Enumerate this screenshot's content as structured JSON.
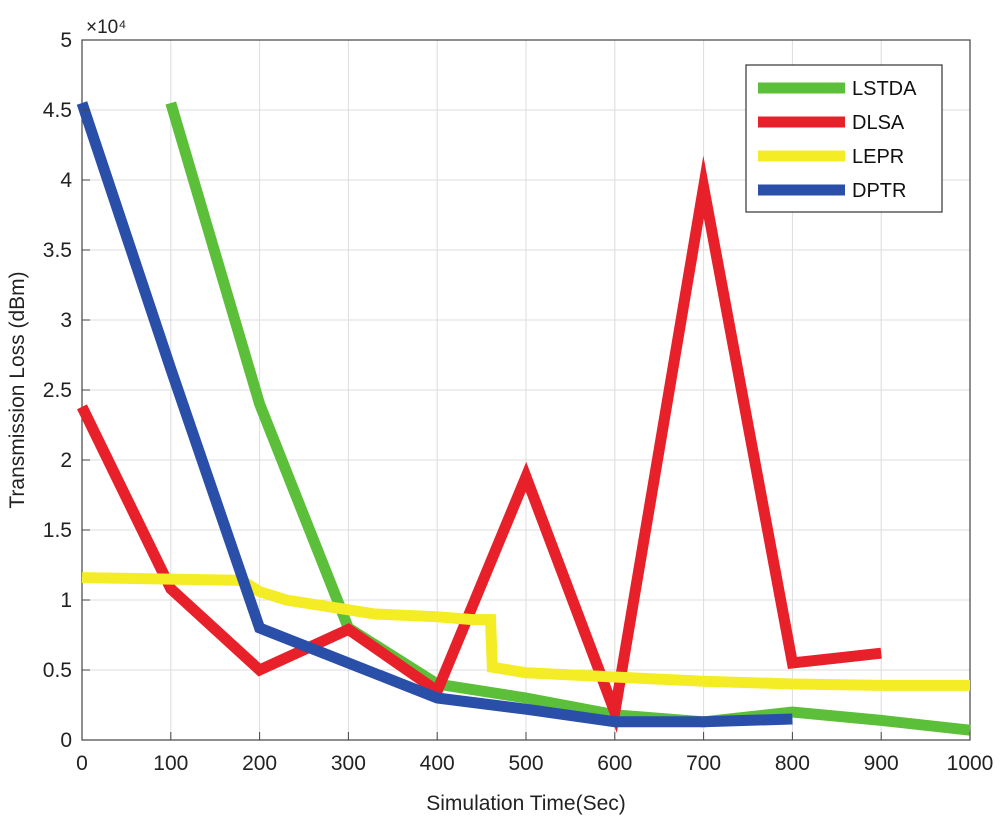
{
  "chart_data": {
    "type": "line",
    "title": "",
    "xlabel": "Simulation Time(Sec)",
    "ylabel": "Transmission Loss (dBm)",
    "y_exponent_label": "×10⁴",
    "xlim": [
      0,
      1000
    ],
    "ylim": [
      0,
      50000
    ],
    "grid": true,
    "legend_position": "top-right",
    "x_ticks": [
      0,
      100,
      200,
      300,
      400,
      500,
      600,
      700,
      800,
      900,
      1000
    ],
    "x_tick_labels": [
      "0",
      "100",
      "200",
      "300",
      "400",
      "500",
      "600",
      "700",
      "800",
      "900",
      "1000"
    ],
    "y_ticks": [
      0,
      5000,
      10000,
      15000,
      20000,
      25000,
      30000,
      35000,
      40000,
      45000,
      50000
    ],
    "y_tick_labels": [
      "0",
      "0.5",
      "1",
      "1.5",
      "2",
      "2.5",
      "3",
      "3.5",
      "4",
      "4.5",
      "5"
    ],
    "series": [
      {
        "name": "LSTDA",
        "color": "#5cbf3a",
        "x": [
          100,
          200,
          300,
          400,
          500,
          600,
          700,
          800,
          900,
          1000
        ],
        "y": [
          45500,
          24000,
          8000,
          4000,
          3000,
          1800,
          1300,
          2000,
          1400,
          700
        ]
      },
      {
        "name": "DLSA",
        "color": "#e8202a",
        "x": [
          0,
          100,
          200,
          300,
          400,
          500,
          600,
          700,
          800,
          900
        ],
        "y": [
          23800,
          10800,
          5000,
          7900,
          3500,
          18800,
          2000,
          39500,
          5500,
          6200
        ]
      },
      {
        "name": "LEPR",
        "color": "#f4ec24",
        "x": [
          0,
          180,
          200,
          230,
          300,
          330,
          400,
          440,
          460,
          462,
          500,
          600,
          700,
          800,
          900,
          1000
        ],
        "y": [
          11600,
          11400,
          10600,
          10000,
          9300,
          9000,
          8800,
          8600,
          8600,
          5200,
          4800,
          4500,
          4200,
          4000,
          3900,
          3900
        ]
      },
      {
        "name": "DPTR",
        "color": "#2a4fa8",
        "x": [
          0,
          100,
          200,
          300,
          400,
          500,
          600,
          700,
          800
        ],
        "y": [
          45500,
          26500,
          8000,
          5500,
          3000,
          2200,
          1300,
          1300,
          1500
        ]
      }
    ]
  }
}
